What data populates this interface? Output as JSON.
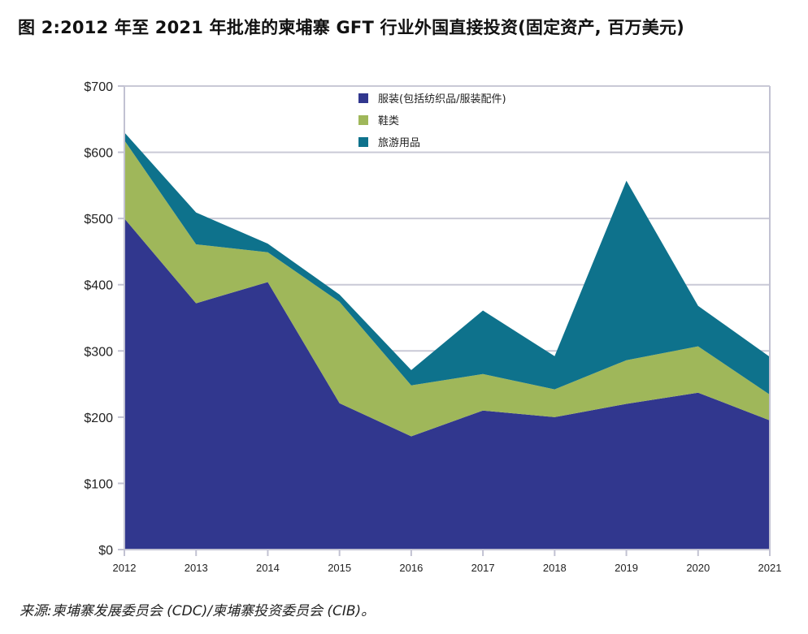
{
  "chart_data": {
    "type": "area",
    "stacked": true,
    "title": "图 2:2012 年至 2021 年批准的柬埔寨 GFT 行业外国直接投资(固定资产, 百万美元)",
    "xlabel": "",
    "ylabel": "",
    "x": [
      "2012",
      "2013",
      "2014",
      "2015",
      "2016",
      "2017",
      "2018",
      "2019",
      "2020",
      "2021"
    ],
    "ylim": [
      0,
      700
    ],
    "yticks": [
      0,
      100,
      200,
      300,
      400,
      500,
      600,
      700
    ],
    "ytick_labels": [
      "$0",
      "$100",
      "$200",
      "$300",
      "$400",
      "$500",
      "$600",
      "$700"
    ],
    "grid": true,
    "legend_position": "top-center",
    "series": [
      {
        "name": "服装(包括纺织品/服装配件)",
        "color": "#31378e",
        "values": [
          500,
          372,
          404,
          221,
          171,
          210,
          200,
          220,
          237,
          195
        ]
      },
      {
        "name": "鞋类",
        "color": "#9fb75a",
        "values": [
          118,
          89,
          45,
          153,
          77,
          55,
          42,
          66,
          70,
          39
        ]
      },
      {
        "name": "旅游用品",
        "color": "#0e728c",
        "values": [
          12,
          48,
          13,
          11,
          23,
          96,
          50,
          271,
          61,
          57
        ]
      }
    ],
    "source": "来源:柬埔寨发展委员会 (CDC)/柬埔寨投资委员会 (CIB)。"
  },
  "style": {
    "grid_color": "#c9c9d6",
    "axis_color": "#c2c2d2"
  }
}
